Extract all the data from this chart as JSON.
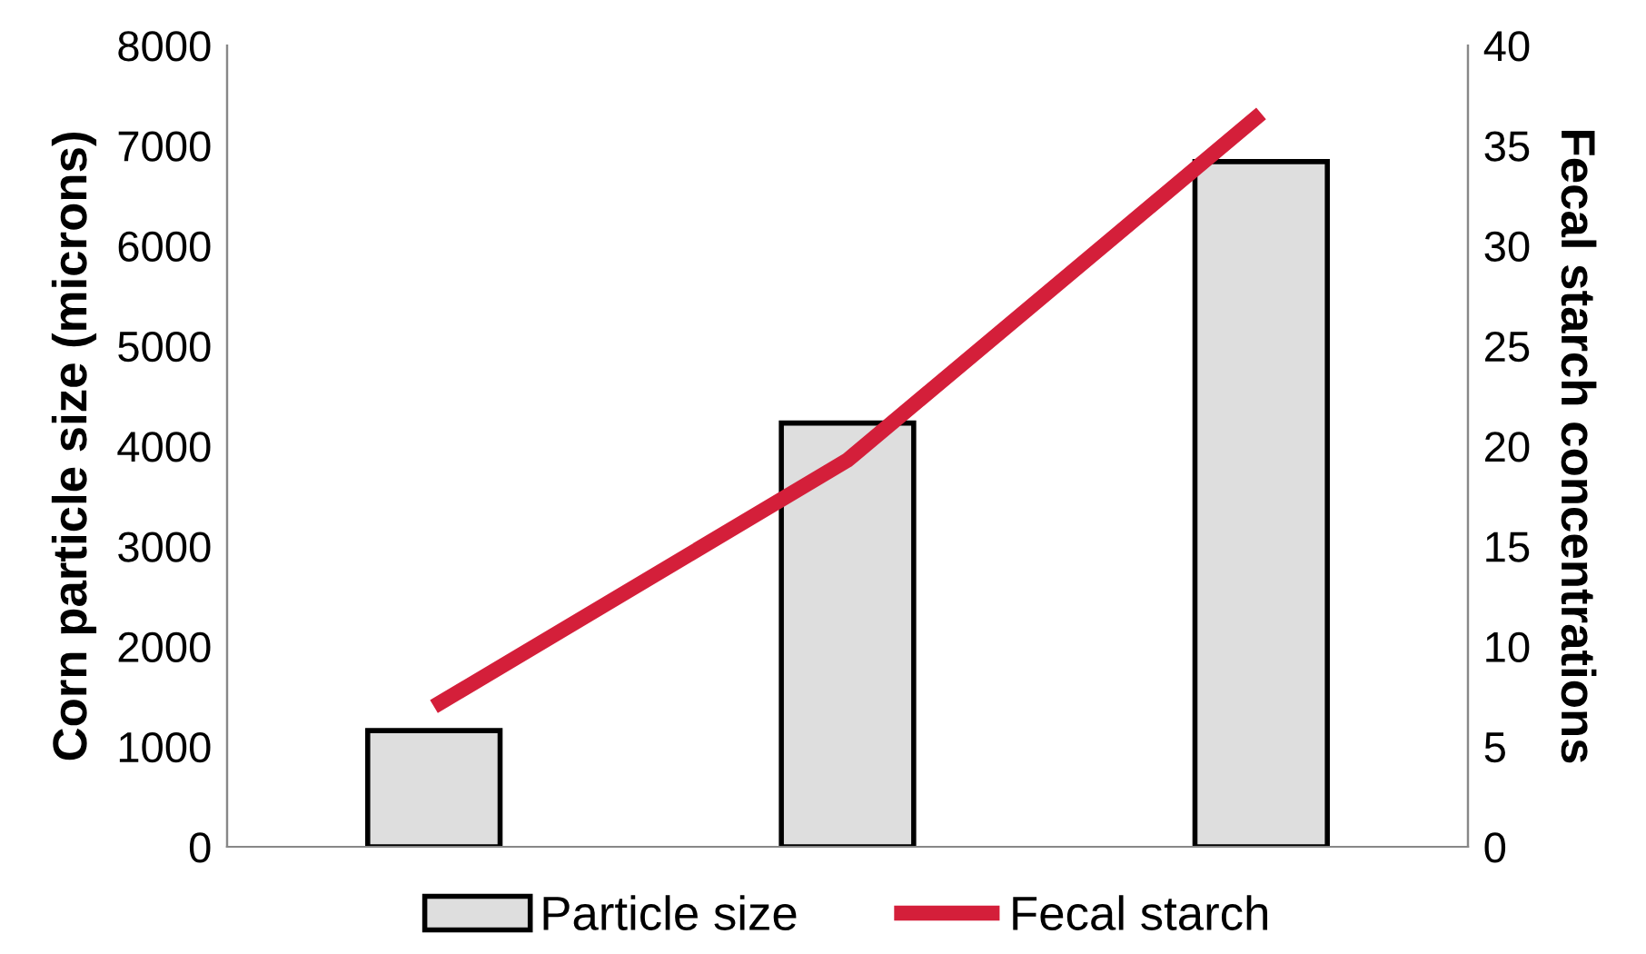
{
  "chart_data": {
    "type": "bar",
    "categories": [
      null,
      null,
      null
    ],
    "ylabel": "Corn particle size (microns)",
    "y2label": "Fecal starch concentrations",
    "series": [
      {
        "name": "Particle size",
        "color": "#dedede",
        "values": [
          1160,
          4230,
          6840
        ]
      },
      {
        "name": "Fecal starch",
        "type": "line",
        "axis": "y2",
        "color": "#d41f3a",
        "values": [
          7,
          19.3,
          36.6
        ]
      }
    ],
    "ylim": [
      0,
      8000
    ],
    "yticks": [
      0,
      1000,
      2000,
      3000,
      4000,
      5000,
      6000,
      7000,
      8000
    ],
    "y2lim": [
      0,
      40
    ],
    "y2ticks": [
      0,
      5,
      10,
      15,
      20,
      25,
      30,
      35,
      40
    ],
    "grid": false,
    "legend": "bottom",
    "marker": "none",
    "line_style": "solid"
  }
}
